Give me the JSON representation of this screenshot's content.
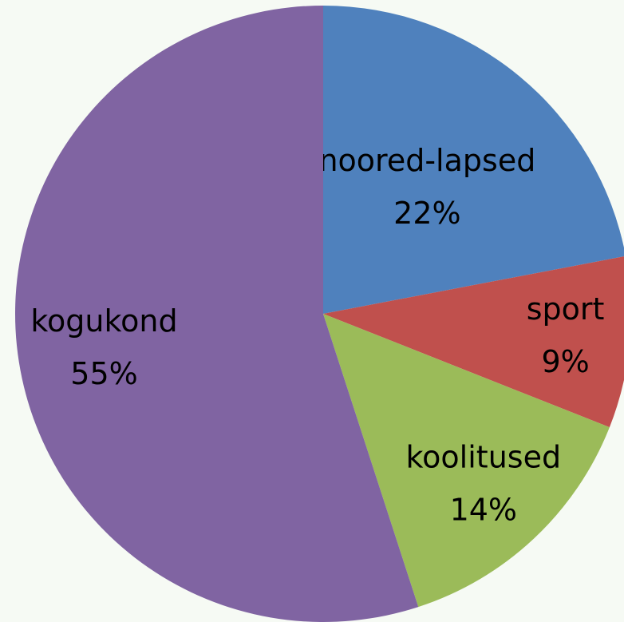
{
  "chart_data": {
    "type": "pie",
    "categories": [
      "noored-lapsed",
      "sport",
      "koolitused",
      "kogukond"
    ],
    "values": [
      22,
      9,
      14,
      55
    ],
    "value_labels": [
      "22%",
      "9%",
      "14%",
      "55%"
    ],
    "colors": [
      "#4f81bd",
      "#c0504d",
      "#9bbb59",
      "#8064a2"
    ]
  }
}
